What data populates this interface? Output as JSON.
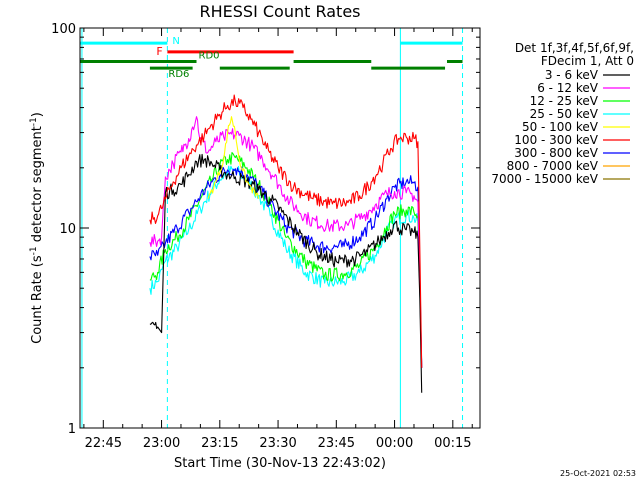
{
  "chart_data": {
    "type": "line",
    "title": "RHESSI Count Rates",
    "xlabel": "Start Time (30-Nov-13 22:43:02)",
    "ylabel": "Count Rate (s⁻¹ detector segment⁻¹)",
    "ylabel_main": "Count Rate (s",
    "ylabel_sup1": "-1",
    "ylabel_mid": " detector segment",
    "ylabel_sup2": "-1",
    "ylabel_end": ")",
    "y_scale": "log",
    "ylim": [
      1,
      100
    ],
    "xlim": [
      "22:39",
      "00:22"
    ],
    "x_ticks": [
      "22:45",
      "23:00",
      "23:15",
      "23:30",
      "23:45",
      "00:00",
      "00:15"
    ],
    "y_ticks": [
      "1",
      "10",
      "100"
    ],
    "grid": false,
    "legend": {
      "placement": "right",
      "header1": "Det 1f,3f,4f,5f,6f,9f,",
      "header2": "FDecim 1, Att 0"
    },
    "series": [
      {
        "name": "3 - 6 keV",
        "color": "#000000",
        "points": [
          [
            "22:57",
            3.3
          ],
          [
            "22:58",
            3.3
          ],
          [
            "22:59",
            3.2
          ],
          [
            "23:00",
            3.0
          ],
          [
            "23:01",
            15
          ],
          [
            "23:03",
            15.5
          ],
          [
            "23:05",
            16.5
          ],
          [
            "23:07",
            18.5
          ],
          [
            "23:09",
            21.5
          ],
          [
            "23:11",
            22
          ],
          [
            "23:13",
            21
          ],
          [
            "23:15",
            19.5
          ],
          [
            "23:17",
            18.5
          ],
          [
            "23:19",
            18
          ],
          [
            "23:22",
            17
          ],
          [
            "23:25",
            15.5
          ],
          [
            "23:28",
            14
          ],
          [
            "23:31",
            12
          ],
          [
            "23:35",
            9.5
          ],
          [
            "23:40",
            7.5
          ],
          [
            "23:45",
            6.8
          ],
          [
            "23:50",
            7.0
          ],
          [
            "23:53",
            7.6
          ],
          [
            "23:56",
            8.6
          ],
          [
            "23:59",
            9.8
          ],
          [
            "00:00",
            10.5
          ],
          [
            "00:01",
            10
          ],
          [
            "00:03",
            9.8
          ],
          [
            "00:05",
            9.5
          ],
          [
            "00:06",
            9.0
          ],
          [
            "00:06.5",
            4.5
          ],
          [
            "00:07",
            1.5
          ]
        ]
      },
      {
        "name": "6 - 12 keV",
        "color": "#ff00ff",
        "points": [
          [
            "22:57",
            8.5
          ],
          [
            "22:59",
            8.6
          ],
          [
            "23:00",
            9.0
          ],
          [
            "23:01",
            18
          ],
          [
            "23:03",
            21
          ],
          [
            "23:05",
            24
          ],
          [
            "23:06",
            26
          ],
          [
            "23:07",
            28
          ],
          [
            "23:08",
            32
          ],
          [
            "23:09",
            36
          ],
          [
            "23:10",
            28
          ],
          [
            "23:12",
            24
          ],
          [
            "23:14",
            27
          ],
          [
            "23:16",
            28.5
          ],
          [
            "23:18",
            29.5
          ],
          [
            "23:20",
            29
          ],
          [
            "23:23",
            26
          ],
          [
            "23:26",
            22
          ],
          [
            "23:29",
            18
          ],
          [
            "23:33",
            13.5
          ],
          [
            "23:38",
            11
          ],
          [
            "23:43",
            10.2
          ],
          [
            "23:48",
            10.3
          ],
          [
            "23:52",
            11.5
          ],
          [
            "23:55",
            13
          ],
          [
            "23:58",
            14.8
          ],
          [
            "00:00",
            15.2
          ],
          [
            "00:03",
            15
          ],
          [
            "00:05",
            14.5
          ],
          [
            "00:06",
            13.5
          ],
          [
            "00:06.5",
            5
          ],
          [
            "00:07",
            2
          ]
        ]
      },
      {
        "name": "12 - 25 keV",
        "color": "#00ff00",
        "points": [
          [
            "22:57",
            5.5
          ],
          [
            "22:59",
            6.0
          ],
          [
            "23:01",
            7.8
          ],
          [
            "23:04",
            9.0
          ],
          [
            "23:07",
            11
          ],
          [
            "23:10",
            14
          ],
          [
            "23:13",
            17.5
          ],
          [
            "23:15",
            20.5
          ],
          [
            "23:17",
            22
          ],
          [
            "23:19",
            22.5
          ],
          [
            "23:22",
            20
          ],
          [
            "23:25",
            16.5
          ],
          [
            "23:28",
            13
          ],
          [
            "23:32",
            9
          ],
          [
            "23:37",
            6.8
          ],
          [
            "23:42",
            5.8
          ],
          [
            "23:47",
            5.9
          ],
          [
            "23:51",
            6.5
          ],
          [
            "23:55",
            8.0
          ],
          [
            "23:58",
            10.2
          ],
          [
            "00:00",
            11.8
          ],
          [
            "00:03",
            12.3
          ],
          [
            "00:05",
            12
          ],
          [
            "00:06",
            11.5
          ],
          [
            "00:06.5",
            5
          ],
          [
            "00:07",
            2
          ]
        ]
      },
      {
        "name": "25 - 50 keV",
        "color": "#00ffff",
        "points": [
          [
            "22:57",
            5.0
          ],
          [
            "22:59",
            5.4
          ],
          [
            "23:01",
            6.8
          ],
          [
            "23:04",
            8.0
          ],
          [
            "23:07",
            9.8
          ],
          [
            "23:10",
            12.5
          ],
          [
            "23:13",
            15.5
          ],
          [
            "23:15",
            17.5
          ],
          [
            "23:17",
            19
          ],
          [
            "23:19",
            19.5
          ],
          [
            "23:22",
            17.5
          ],
          [
            "23:25",
            14.5
          ],
          [
            "23:28",
            11.5
          ],
          [
            "23:32",
            8
          ],
          [
            "23:37",
            6.0
          ],
          [
            "23:42",
            5.3
          ],
          [
            "23:47",
            5.4
          ],
          [
            "23:51",
            6.0
          ],
          [
            "23:55",
            7.3
          ],
          [
            "23:58",
            9.5
          ],
          [
            "00:00",
            11
          ],
          [
            "00:03",
            11.5
          ],
          [
            "00:05",
            11.2
          ],
          [
            "00:06",
            10.8
          ],
          [
            "00:06.5",
            5
          ],
          [
            "00:07",
            2
          ]
        ]
      },
      {
        "name": "50 - 100 keV",
        "color": "#ffff00",
        "points": [
          [
            "23:12",
            14
          ],
          [
            "23:14",
            17
          ],
          [
            "23:16",
            22
          ],
          [
            "23:17",
            30
          ],
          [
            "23:18",
            36
          ],
          [
            "23:19",
            30
          ],
          [
            "23:20",
            22
          ],
          [
            "23:22",
            17
          ],
          [
            "23:25",
            14
          ]
        ]
      },
      {
        "name": "100 - 300 keV",
        "color": "#ff0000",
        "points": [
          [
            "22:57",
            11
          ],
          [
            "22:59",
            11.5
          ],
          [
            "23:00",
            12.5
          ],
          [
            "23:01",
            14
          ],
          [
            "23:03",
            17
          ],
          [
            "23:05",
            20
          ],
          [
            "23:07",
            23
          ],
          [
            "23:09",
            26
          ],
          [
            "23:11",
            29
          ],
          [
            "23:13",
            33
          ],
          [
            "23:15",
            37
          ],
          [
            "23:17",
            41
          ],
          [
            "23:19",
            43
          ],
          [
            "23:21",
            40
          ],
          [
            "23:23",
            35
          ],
          [
            "23:25",
            30
          ],
          [
            "23:27",
            25
          ],
          [
            "23:30",
            20
          ],
          [
            "23:34",
            16
          ],
          [
            "23:39",
            14
          ],
          [
            "23:44",
            13.2
          ],
          [
            "23:48",
            13.4
          ],
          [
            "23:51",
            14.5
          ],
          [
            "23:54",
            17
          ],
          [
            "23:57",
            21
          ],
          [
            "23:59",
            25
          ],
          [
            "00:01",
            28
          ],
          [
            "00:03",
            28.5
          ],
          [
            "00:05",
            28
          ],
          [
            "00:06",
            27
          ],
          [
            "00:06.5",
            8
          ],
          [
            "00:07",
            2
          ]
        ]
      },
      {
        "name": "300 - 800 keV",
        "color": "#0000ff",
        "points": [
          [
            "22:57",
            7.2
          ],
          [
            "22:59",
            7.3
          ],
          [
            "23:01",
            8.4
          ],
          [
            "23:04",
            10
          ],
          [
            "23:07",
            12
          ],
          [
            "23:10",
            14.5
          ],
          [
            "23:13",
            17
          ],
          [
            "23:15",
            18.5
          ],
          [
            "23:17",
            19.5
          ],
          [
            "23:19",
            19.8
          ],
          [
            "23:22",
            18.5
          ],
          [
            "23:25",
            16
          ],
          [
            "23:28",
            13.2
          ],
          [
            "23:32",
            10.3
          ],
          [
            "23:37",
            8.6
          ],
          [
            "23:42",
            8.0
          ],
          [
            "23:47",
            8.1
          ],
          [
            "23:51",
            9.0
          ],
          [
            "23:55",
            11
          ],
          [
            "23:58",
            14
          ],
          [
            "00:00",
            16
          ],
          [
            "00:03",
            17
          ],
          [
            "00:05",
            16.8
          ],
          [
            "00:06",
            16
          ],
          [
            "00:06.5",
            6
          ],
          [
            "00:07",
            2
          ]
        ]
      },
      {
        "name": "800 - 7000 keV",
        "color": "#ffa500",
        "points": [
          [
            "22:57",
            4.8
          ],
          [
            "22:59",
            5.0
          ],
          [
            "23:01",
            5.8
          ],
          [
            "23:04",
            7.0
          ],
          [
            "23:07",
            8.5
          ],
          [
            "23:10",
            10.5
          ],
          [
            "23:13",
            12.5
          ],
          [
            "23:15",
            13.8
          ],
          [
            "23:17",
            14.5
          ],
          [
            "23:19",
            14.6
          ],
          [
            "23:22",
            13.8
          ],
          [
            "23:25",
            12
          ],
          [
            "23:28",
            10
          ],
          [
            "23:32",
            7.8
          ],
          [
            "23:37",
            6.2
          ],
          [
            "23:42",
            5.7
          ],
          [
            "23:47",
            5.8
          ],
          [
            "23:51",
            6.5
          ],
          [
            "23:55",
            8.0
          ],
          [
            "23:58",
            10.2
          ],
          [
            "00:00",
            11.8
          ],
          [
            "00:03",
            12.5
          ],
          [
            "00:05",
            12.3
          ],
          [
            "00:06",
            11.8
          ],
          [
            "00:06.5",
            5
          ],
          [
            "00:07",
            1.6
          ]
        ]
      },
      {
        "name": "7000 - 15000 keV",
        "color": "#8b7500",
        "points": []
      }
    ],
    "overlays": {
      "cyan_top": {
        "label": "N",
        "color": "#00ffff",
        "value": 84,
        "segments": [
          [
            "22:39",
            "23:01.5"
          ],
          [
            "00:01.5",
            "00:17.5"
          ]
        ]
      },
      "red_top": {
        "label": "F",
        "color": "#ff0000",
        "value": 76,
        "segments": [
          [
            "23:01.5",
            "23:34"
          ]
        ]
      },
      "green_top": {
        "labels": [
          "RD0",
          "RD6"
        ],
        "color": "#008000",
        "value": 68,
        "segments": [
          [
            "22:39",
            "23:09"
          ],
          [
            "23:34",
            "23:54"
          ],
          [
            "00:13.5",
            "00:17.5"
          ]
        ]
      },
      "green_bottom": {
        "color": "#008000",
        "value": 63,
        "segments": [
          [
            "22:57",
            "23:08"
          ],
          [
            "23:15",
            "23:33"
          ],
          [
            "23:54",
            "00:13"
          ]
        ]
      },
      "cyan_vertical_solid": [
        "22:39.5",
        "00:01.5"
      ],
      "cyan_vertical_dashed": [
        "23:01.5",
        "00:17.5"
      ]
    },
    "footer_timestamp": "25-Oct-2021 02:53"
  }
}
